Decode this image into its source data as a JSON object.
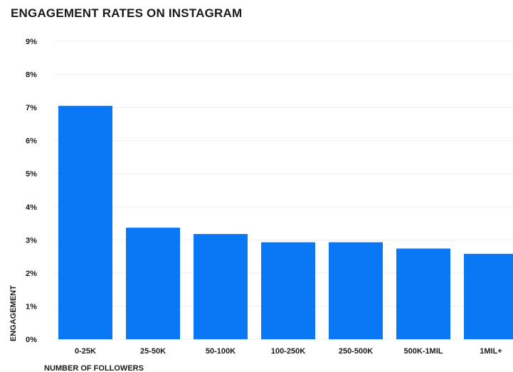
{
  "chart_data": {
    "type": "bar",
    "title": "ENGAGEMENT RATES ON INSTAGRAM",
    "xlabel": "NUMBER OF FOLLOWERS",
    "ylabel": "ENGAGEMENT",
    "categories": [
      "0-25K",
      "25-50K",
      "50-100K",
      "100-250K",
      "250-500K",
      "500K-1MIL",
      "1MIL+"
    ],
    "values": [
      7.05,
      3.37,
      3.18,
      2.93,
      2.93,
      2.74,
      2.58
    ],
    "value_unit": "%",
    "ylim": [
      0,
      9
    ],
    "yticks": [
      "0%",
      "1%",
      "2%",
      "3%",
      "4%",
      "5%",
      "6%",
      "7%",
      "8%",
      "9%"
    ],
    "grid": true,
    "bar_color": "#0a78f5"
  }
}
